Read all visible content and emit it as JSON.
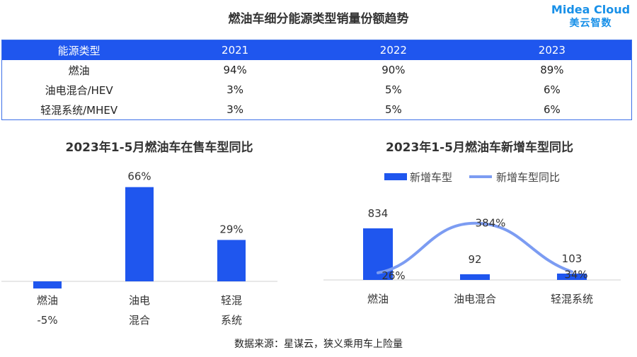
{
  "title": "燃油车细分能源类型销量份额趋势",
  "logo": {
    "line1": "Midea Cloud",
    "line2": "美云智数"
  },
  "table": {
    "headers": [
      "能源类型",
      "2021",
      "2022",
      "2023"
    ],
    "rows": [
      [
        "燃油",
        "94%",
        "90%",
        "89%"
      ],
      [
        "油电混合/HEV",
        "3%",
        "5%",
        "6%"
      ],
      [
        "轻混系统/MHEV",
        "3%",
        "5%",
        "6%"
      ]
    ]
  },
  "source": "数据来源：星谋云，狭义乘用车上险量",
  "colors": {
    "bar": "#1f56ee",
    "line": "#7c9cf2",
    "header": "#1f56ee"
  },
  "chart_data": [
    {
      "type": "bar",
      "title": "2023年1-5月燃油车在售车型同比",
      "categories": [
        [
          "燃油",
          "-5%"
        ],
        [
          "油电",
          "混合"
        ],
        [
          "轻混",
          "系统"
        ]
      ],
      "values": [
        -5,
        66,
        29
      ],
      "value_labels": [
        "",
        "66%",
        "29%"
      ],
      "unit": "%",
      "legend": "none",
      "grid": false
    },
    {
      "type": "bar+line",
      "title": "2023年1-5月燃油车新增车型同比",
      "categories": [
        "燃油",
        "油电混合",
        "轻混系统"
      ],
      "series": [
        {
          "name": "新增车型",
          "type": "bar",
          "values": [
            834,
            92,
            103
          ],
          "labels": [
            "834",
            "92",
            "103"
          ]
        },
        {
          "name": "新增车型同比",
          "type": "line",
          "smooth": true,
          "values": [
            26,
            384,
            34
          ],
          "labels": [
            "26%",
            "384%",
            "34%"
          ]
        }
      ],
      "legend": "top",
      "grid": false
    }
  ]
}
